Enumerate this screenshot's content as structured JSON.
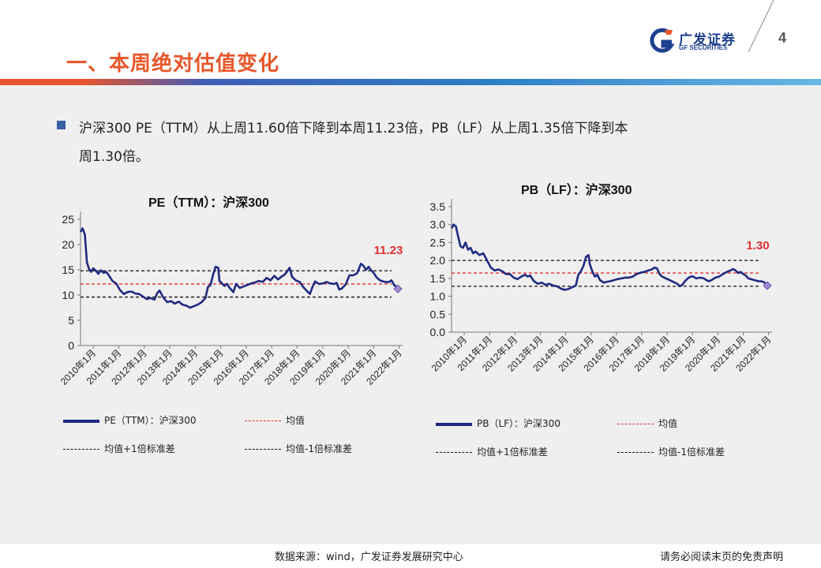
{
  "header": {
    "title": "一、本周绝对估值变化",
    "logo_cn": "广发证券",
    "logo_en": "GF SECURITIES",
    "page_number": "4"
  },
  "bullet": {
    "line1": "沪深300 PE（TTM）从上周11.60倍下降到本周11.23倍，PB（LF）从上周1.35倍下降到本",
    "line2": "周1.30倍。"
  },
  "footer": {
    "source": "数据来源：wind，广发证券发展研究中心",
    "disclaimer": "请务必阅读末页的免责声明"
  },
  "colors": {
    "series": "#1f2a80",
    "mean": "#e03030",
    "band": "#111111",
    "annotation": "#e03030",
    "title_accent": "#e8572a"
  },
  "chart_data": [
    {
      "type": "line",
      "title": "PE（TTM）：沪深300",
      "xlabels": [
        "2010年1月",
        "2011年1月",
        "2012年1月",
        "2013年1月",
        "2014年1月",
        "2015年1月",
        "2016年1月",
        "2017年1月",
        "2018年1月",
        "2019年1月",
        "2020年1月",
        "2021年1月",
        "2022年1月"
      ],
      "yticks": [
        "0",
        "5",
        "10",
        "15",
        "20",
        "25"
      ],
      "ylim": [
        0,
        25
      ],
      "xlim": [
        2010.0,
        2022.45
      ],
      "latest_label": "11.23",
      "mean": 12.2,
      "mean_plus_1sd": 14.8,
      "mean_minus_1sd": 9.6,
      "legend": {
        "series": "PE（TTM）：沪深300",
        "mean": "均值",
        "upper": "均值+1倍标准差",
        "lower": "均值-1倍标准差"
      },
      "series": [
        {
          "name": "PE（TTM）：沪深300",
          "x": [
            2010.0,
            2010.08,
            2010.17,
            2010.25,
            2010.33,
            2010.42,
            2010.5,
            2010.6,
            2010.7,
            2010.8,
            2010.9,
            2011.0,
            2011.1,
            2011.25,
            2011.4,
            2011.55,
            2011.7,
            2011.85,
            2012.0,
            2012.15,
            2012.3,
            2012.45,
            2012.6,
            2012.75,
            2012.9,
            2013.0,
            2013.1,
            2013.25,
            2013.4,
            2013.55,
            2013.7,
            2013.85,
            2014.0,
            2014.15,
            2014.3,
            2014.45,
            2014.6,
            2014.75,
            2014.9,
            2015.0,
            2015.1,
            2015.2,
            2015.3,
            2015.4,
            2015.45,
            2015.55,
            2015.65,
            2015.75,
            2015.85,
            2016.0,
            2016.1,
            2016.25,
            2016.4,
            2016.55,
            2016.7,
            2016.85,
            2017.0,
            2017.15,
            2017.3,
            2017.45,
            2017.6,
            2017.75,
            2017.9,
            2018.0,
            2018.1,
            2018.2,
            2018.3,
            2018.45,
            2018.6,
            2018.75,
            2018.9,
            2019.0,
            2019.1,
            2019.2,
            2019.35,
            2019.5,
            2019.65,
            2019.8,
            2019.95,
            2020.05,
            2020.15,
            2020.25,
            2020.4,
            2020.55,
            2020.7,
            2020.85,
            2021.0,
            2021.1,
            2021.2,
            2021.3,
            2021.4,
            2021.5,
            2021.6,
            2021.7,
            2021.8,
            2021.95,
            2022.1,
            2022.2,
            2022.3,
            2022.4,
            2022.45
          ],
          "values": [
            22.5,
            23.2,
            22.0,
            16.5,
            15.2,
            14.6,
            15.3,
            14.8,
            14.2,
            14.9,
            14.4,
            14.6,
            14.0,
            12.8,
            12.3,
            11.0,
            10.2,
            10.6,
            10.7,
            10.3,
            10.2,
            9.7,
            9.2,
            9.4,
            9.1,
            10.3,
            10.9,
            9.5,
            8.6,
            8.8,
            8.3,
            8.7,
            8.1,
            7.9,
            7.5,
            7.8,
            8.1,
            8.6,
            9.4,
            11.6,
            12.0,
            14.0,
            15.6,
            15.4,
            12.8,
            12.3,
            11.8,
            12.2,
            11.4,
            10.6,
            12.2,
            11.4,
            11.7,
            12.0,
            12.3,
            12.5,
            12.8,
            12.6,
            13.4,
            12.9,
            13.8,
            13.1,
            13.7,
            14.0,
            14.6,
            15.4,
            13.6,
            12.9,
            12.6,
            11.5,
            10.7,
            10.2,
            11.6,
            12.7,
            12.2,
            12.3,
            12.6,
            12.3,
            12.2,
            12.4,
            11.1,
            11.3,
            12.1,
            13.9,
            13.9,
            14.3,
            16.2,
            15.8,
            15.0,
            15.6,
            14.9,
            14.4,
            13.6,
            13.1,
            12.8,
            12.6,
            12.6,
            12.9,
            12.0,
            11.6,
            11.23
          ]
        }
      ]
    },
    {
      "type": "line",
      "title": "PB（LF）：沪深300",
      "xlabels": [
        "2010年1月",
        "2011年1月",
        "2012年1月",
        "2013年1月",
        "2014年1月",
        "2015年1月",
        "2016年1月",
        "2017年1月",
        "2018年1月",
        "2019年1月",
        "2020年1月",
        "2021年1月",
        "2022年1月"
      ],
      "yticks": [
        "0.0",
        "0.5",
        "1.0",
        "1.5",
        "2.0",
        "2.5",
        "3.0",
        "3.5"
      ],
      "ylim": [
        0,
        3.5
      ],
      "xlim": [
        2010.0,
        2022.45
      ],
      "latest_label": "1.30",
      "mean": 1.65,
      "mean_plus_1sd": 2.0,
      "mean_minus_1sd": 1.28,
      "legend": {
        "series": "PB（LF）：沪深300",
        "mean": "均值",
        "upper": "均值+1倍标准差",
        "lower": "均值-1倍标准差"
      },
      "series": [
        {
          "name": "PB（LF）：沪深300",
          "x": [
            2010.0,
            2010.08,
            2010.17,
            2010.25,
            2010.35,
            2010.45,
            2010.55,
            2010.65,
            2010.75,
            2010.85,
            2010.95,
            2011.1,
            2011.25,
            2011.4,
            2011.55,
            2011.7,
            2011.85,
            2012.0,
            2012.15,
            2012.3,
            2012.45,
            2012.6,
            2012.75,
            2012.9,
            2013.0,
            2013.1,
            2013.25,
            2013.4,
            2013.55,
            2013.7,
            2013.85,
            2014.0,
            2014.15,
            2014.3,
            2014.45,
            2014.6,
            2014.75,
            2014.9,
            2015.0,
            2015.1,
            2015.2,
            2015.3,
            2015.4,
            2015.45,
            2015.55,
            2015.65,
            2015.75,
            2015.85,
            2016.0,
            2016.1,
            2016.25,
            2016.4,
            2016.55,
            2016.7,
            2016.85,
            2017.0,
            2017.15,
            2017.3,
            2017.45,
            2017.6,
            2017.75,
            2017.9,
            2018.0,
            2018.1,
            2018.2,
            2018.3,
            2018.45,
            2018.6,
            2018.75,
            2018.9,
            2019.0,
            2019.1,
            2019.2,
            2019.35,
            2019.5,
            2019.65,
            2019.8,
            2019.95,
            2020.05,
            2020.15,
            2020.25,
            2020.4,
            2020.55,
            2020.7,
            2020.85,
            2021.0,
            2021.1,
            2021.2,
            2021.3,
            2021.4,
            2021.5,
            2021.6,
            2021.7,
            2021.8,
            2021.95,
            2022.1,
            2022.2,
            2022.3,
            2022.4,
            2022.45
          ],
          "values": [
            2.9,
            3.0,
            2.95,
            2.7,
            2.4,
            2.35,
            2.5,
            2.3,
            2.35,
            2.2,
            2.25,
            2.15,
            2.2,
            2.0,
            1.8,
            1.72,
            1.75,
            1.7,
            1.62,
            1.62,
            1.52,
            1.48,
            1.55,
            1.6,
            1.55,
            1.58,
            1.42,
            1.35,
            1.38,
            1.32,
            1.35,
            1.3,
            1.28,
            1.22,
            1.18,
            1.2,
            1.25,
            1.3,
            1.6,
            1.7,
            1.85,
            2.1,
            2.15,
            1.9,
            1.7,
            1.55,
            1.6,
            1.45,
            1.38,
            1.4,
            1.42,
            1.45,
            1.48,
            1.5,
            1.52,
            1.52,
            1.55,
            1.62,
            1.66,
            1.68,
            1.72,
            1.75,
            1.8,
            1.78,
            1.62,
            1.55,
            1.5,
            1.45,
            1.4,
            1.35,
            1.28,
            1.32,
            1.42,
            1.52,
            1.56,
            1.5,
            1.52,
            1.5,
            1.45,
            1.42,
            1.45,
            1.52,
            1.55,
            1.62,
            1.68,
            1.72,
            1.76,
            1.72,
            1.65,
            1.68,
            1.62,
            1.58,
            1.5,
            1.48,
            1.45,
            1.42,
            1.42,
            1.4,
            1.35,
            1.3
          ]
        }
      ]
    }
  ]
}
